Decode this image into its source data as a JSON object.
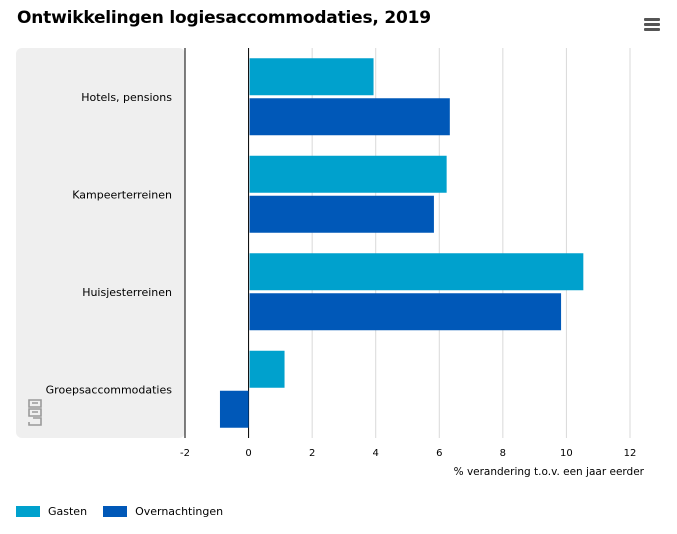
{
  "title": "Ontwikkelingen logiesaccommodaties, 2019",
  "menu_icon": "hamburger-menu-icon",
  "logo_icon": "cbs-logo-icon",
  "colors": {
    "gasten": "#00A1CD",
    "overnachtingen": "#0058B8",
    "category_band": "#EFEFEF",
    "grid": "#D9D9D9"
  },
  "chart_data": {
    "type": "bar",
    "orientation": "horizontal",
    "title": "Ontwikkelingen logiesaccommodaties, 2019",
    "categories": [
      "Hotels, pensions",
      "Kampeerterreinen",
      "Huisjesterreinen",
      "Groepsaccommodaties"
    ],
    "series": [
      {
        "name": "Gasten",
        "values": [
          3.9,
          6.2,
          10.5,
          1.1
        ]
      },
      {
        "name": "Overnachtingen",
        "values": [
          6.3,
          5.8,
          9.8,
          -0.9
        ]
      }
    ],
    "xlabel": "% verandering t.o.v. een jaar eerder",
    "xlim": [
      -2,
      12
    ],
    "xticks": [
      "-2",
      "0",
      "2",
      "4",
      "6",
      "8",
      "10",
      "12"
    ],
    "grid": true,
    "legend_position": "bottom-left"
  }
}
